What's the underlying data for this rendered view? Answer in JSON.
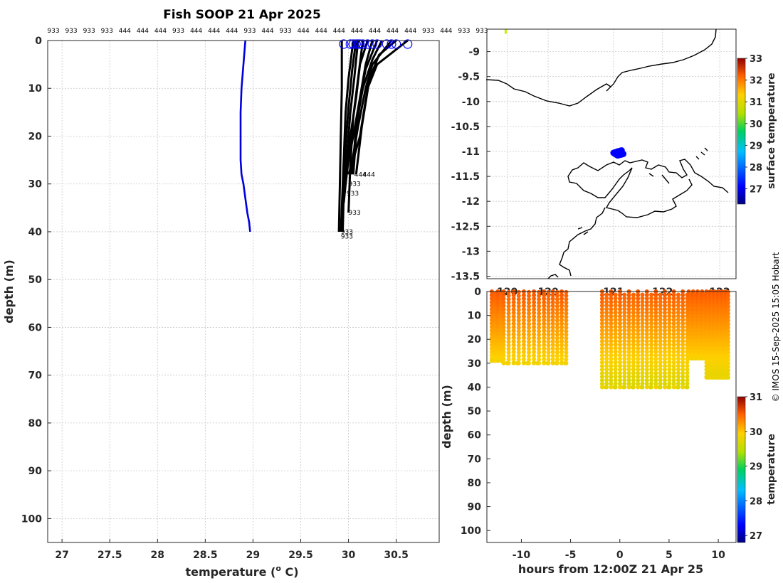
{
  "chart_data": [
    {
      "id": "profile",
      "type": "line",
      "title": "Fish SOOP 21 Apr 2025",
      "xlabel": "temperature (",
      "xlabel_sup": "o",
      "xlabel_unit": " C)",
      "ylabel": "depth (m)",
      "xlim": [
        26.85,
        30.95
      ],
      "ylim": [
        0,
        105
      ],
      "y_reversed": true,
      "grid": true,
      "xticks": [
        "27",
        "27.5",
        "28",
        "28.5",
        "29",
        "29.5",
        "30",
        "30.5"
      ],
      "yticks": [
        "0",
        "10",
        "20",
        "30",
        "40",
        "50",
        "60",
        "70",
        "80",
        "90",
        "100"
      ],
      "top_labels": [
        "933",
        "933",
        "933",
        "933",
        "444",
        "444",
        "444",
        "933",
        "444",
        "444",
        "444",
        "933",
        "444",
        "933",
        "444",
        "444",
        "444",
        "444",
        "444",
        "444",
        "444",
        "933",
        "444",
        "933",
        "933"
      ],
      "series": [
        {
          "role": "climatology",
          "color": "#0000dd",
          "x": [
            28.92,
            28.9,
            28.88,
            28.87,
            28.87,
            28.87,
            28.88,
            28.9,
            28.92,
            28.94,
            28.96,
            28.97
          ],
          "y": [
            0,
            5,
            10,
            15,
            20,
            25,
            28,
            30,
            33,
            36,
            38,
            40
          ]
        },
        {
          "role": "profiles",
          "color": "#000000",
          "profiles": [
            {
              "x": [
                30.62,
                30.3,
                30.2,
                30.12,
                30.05,
                30.0
              ],
              "y": [
                0,
                5,
                10,
                20,
                25,
                28
              ]
            },
            {
              "x": [
                30.45,
                30.25,
                30.18,
                30.1,
                30.05,
                30.02
              ],
              "y": [
                0,
                5,
                10,
                18,
                24,
                28
              ]
            },
            {
              "x": [
                30.3,
                30.18,
                30.12,
                30.05,
                30.0,
                29.97
              ],
              "y": [
                0,
                6,
                12,
                20,
                25,
                30
              ]
            },
            {
              "x": [
                30.2,
                30.12,
                30.08,
                30.02,
                29.98,
                29.95
              ],
              "y": [
                0,
                5,
                12,
                20,
                28,
                34
              ]
            },
            {
              "x": [
                30.1,
                30.06,
                30.02,
                29.98,
                29.95,
                29.93
              ],
              "y": [
                0,
                8,
                15,
                25,
                32,
                40
              ]
            },
            {
              "x": [
                30.05,
                30.0,
                29.97,
                29.95,
                29.93,
                29.92
              ],
              "y": [
                0,
                8,
                15,
                25,
                35,
                40
              ]
            },
            {
              "x": [
                30.15,
                30.1,
                30.05,
                30.02,
                30.0
              ],
              "y": [
                0,
                8,
                16,
                26,
                36
              ]
            },
            {
              "x": [
                30.35,
                30.25,
                30.15,
                30.08,
                30.04
              ],
              "y": [
                0,
                4,
                10,
                18,
                28
              ]
            },
            {
              "x": [
                30.5,
                30.32,
                30.22,
                30.14,
                30.08
              ],
              "y": [
                0,
                3,
                8,
                18,
                28
              ]
            },
            {
              "x": [
                29.93,
                29.93,
                29.92,
                29.91,
                29.9
              ],
              "y": [
                0,
                10,
                20,
                30,
                40
              ]
            },
            {
              "x": [
                30.08,
                30.04,
                30.0,
                29.97,
                29.95,
                29.94
              ],
              "y": [
                0,
                6,
                14,
                22,
                32,
                40
              ]
            },
            {
              "x": [
                30.25,
                30.18,
                30.12,
                30.08,
                30.05
              ],
              "y": [
                0,
                5,
                12,
                20,
                28
              ]
            }
          ]
        }
      ],
      "surface_markers": [
        29.95,
        30.02,
        30.05,
        30.08,
        30.1,
        30.12,
        30.15,
        30.2,
        30.25,
        30.3,
        30.4,
        30.45,
        30.5,
        30.62
      ],
      "annotations": [
        {
          "text": "444",
          "x": 30.06,
          "y": 28
        },
        {
          "text": "444",
          "x": 30.15,
          "y": 28
        },
        {
          "text": "933",
          "x": 30.0,
          "y": 30
        },
        {
          "text": "933",
          "x": 29.98,
          "y": 32
        },
        {
          "text": "933",
          "x": 30.0,
          "y": 36
        },
        {
          "text": "933",
          "x": 29.92,
          "y": 40
        },
        {
          "text": "933",
          "x": 29.92,
          "y": 41
        }
      ]
    },
    {
      "id": "map",
      "type": "scatter",
      "xlim": [
        119.45,
        122.5
      ],
      "ylim": [
        -13.55,
        -8.55
      ],
      "xticks": [
        "120",
        "120",
        "121",
        "122",
        "122"
      ],
      "yticks": [
        "-9",
        "-9.5",
        "-10",
        "-10.5",
        "-11",
        "-11.5",
        "-12",
        "-12.5",
        "-13",
        "-13.5"
      ],
      "grid": true,
      "track": {
        "x": [
          121.05,
          121.02,
          121.08,
          121.12,
          121.05,
          121.0,
          121.1
        ],
        "y": [
          -11.0,
          -11.05,
          -11.02,
          -11.05,
          -11.08,
          -11.03,
          -10.98
        ],
        "color": "#0000ff"
      },
      "marker": {
        "x": 119.68,
        "y": -8.6,
        "color": "#ccee00"
      },
      "colorbar": {
        "label": "surface temperature",
        "min": 26.3,
        "max": 33,
        "ticks": [
          "27",
          "28",
          "29",
          "30",
          "31",
          "32",
          "33"
        ]
      }
    },
    {
      "id": "section",
      "type": "scatter",
      "xlabel": "hours from 12:00Z 21 Apr 25",
      "ylabel": "depth (m)",
      "xlim": [
        -13.5,
        11.8
      ],
      "ylim": [
        0,
        105
      ],
      "y_reversed": true,
      "xticks": [
        "-10",
        "-5",
        "0",
        "5",
        "10"
      ],
      "yticks": [
        "0",
        "10",
        "20",
        "30",
        "40",
        "50",
        "60",
        "70",
        "80",
        "90",
        "100"
      ],
      "segments": [
        {
          "t0": -13.0,
          "t1": -11.8,
          "n": 2,
          "bottom": 29
        },
        {
          "t0": -11.8,
          "t1": -7.7,
          "n": 4,
          "bottom": 30
        },
        {
          "t0": -7.7,
          "t1": -5.0,
          "n": 3,
          "bottom": 30
        },
        {
          "t0": -1.8,
          "t1": 7.3,
          "n": 10,
          "bottom": 40
        },
        {
          "t0": 7.0,
          "t1": 8.8,
          "n": 4,
          "bottom": 28
        },
        {
          "t0": 8.8,
          "t1": 11.2,
          "n": 6,
          "bottom": 36
        }
      ],
      "colorbar": {
        "label": "temperature",
        "min": 26.8,
        "max": 31,
        "ticks": [
          "27",
          "28",
          "29",
          "30",
          "31"
        ]
      }
    }
  ],
  "credit": "© IMOS 15-Sep-2025 15:05 Hobart"
}
